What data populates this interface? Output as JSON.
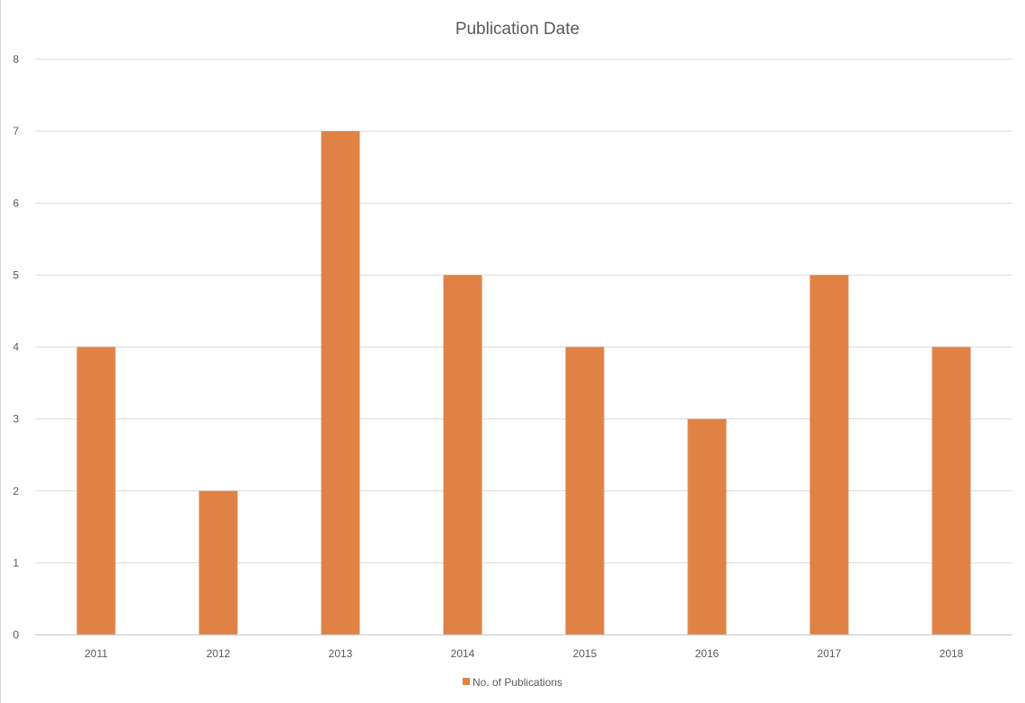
{
  "chart_data": {
    "type": "bar",
    "title": "Publication Date",
    "xlabel": "",
    "ylabel": "",
    "categories": [
      "2011",
      "2012",
      "2013",
      "2014",
      "2015",
      "2016",
      "2017",
      "2018"
    ],
    "series": [
      {
        "name": "No. of Publications",
        "values": [
          4,
          2,
          7,
          5,
          4,
          3,
          5,
          4
        ],
        "color": "#E08245"
      }
    ],
    "ylim": [
      0,
      8
    ],
    "yticks": [
      "0",
      "1",
      "2",
      "3",
      "4",
      "5",
      "6",
      "7",
      "8"
    ],
    "grid": true,
    "legend_position": "bottom"
  }
}
